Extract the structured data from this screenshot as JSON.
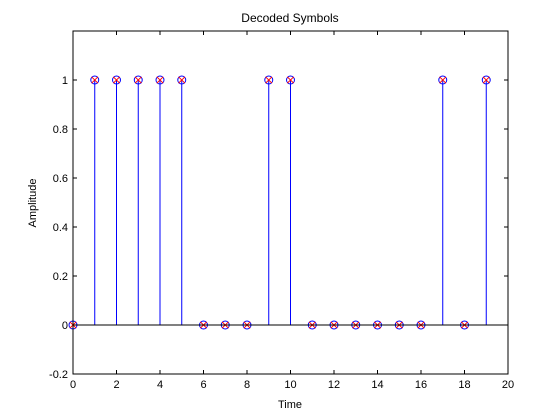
{
  "chart_data": {
    "type": "stem",
    "title": "Decoded Symbols",
    "xlabel": "Time",
    "ylabel": "Amplitude",
    "xlim": [
      0,
      20
    ],
    "ylim": [
      -0.2,
      1.2
    ],
    "x_ticks": [
      0,
      2,
      4,
      6,
      8,
      10,
      12,
      14,
      16,
      18,
      20
    ],
    "y_ticks": [
      -0.2,
      0,
      0.2,
      0.4,
      0.6,
      0.8,
      1
    ],
    "x": [
      0,
      1,
      2,
      3,
      4,
      5,
      6,
      7,
      8,
      9,
      10,
      11,
      12,
      13,
      14,
      15,
      16,
      17,
      18,
      19
    ],
    "y": [
      0,
      1,
      1,
      1,
      1,
      1,
      0,
      0,
      0,
      1,
      1,
      0,
      0,
      0,
      0,
      0,
      0,
      1,
      0,
      1
    ],
    "grid": false,
    "colors": {
      "stem": "#0000ff",
      "circle_marker": "#0000ff",
      "x_marker": "#ff0000",
      "baseline": "#000000"
    }
  }
}
